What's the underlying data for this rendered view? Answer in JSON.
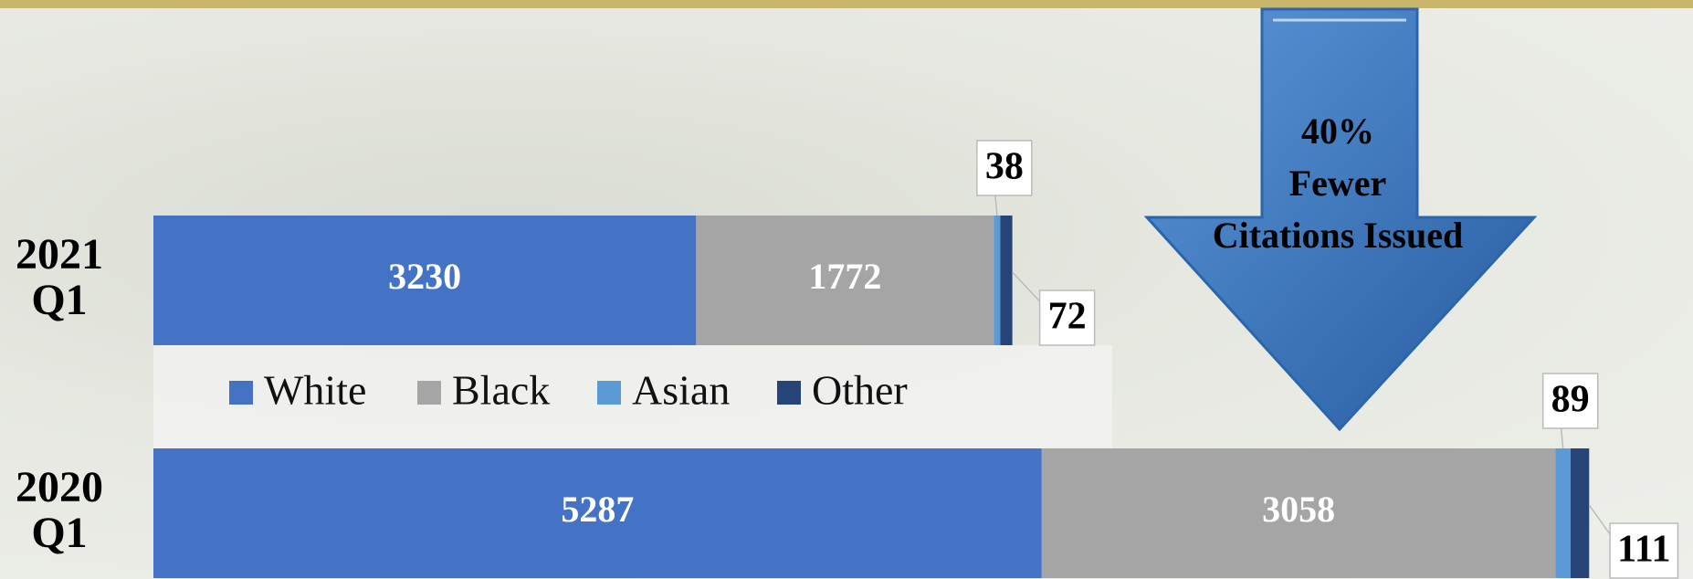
{
  "chart_data": {
    "type": "stacked-bar-horizontal",
    "categories": [
      "2021 Q1",
      "2020 Q1"
    ],
    "series": [
      {
        "name": "White",
        "color": "#4472c4",
        "values": [
          3230,
          5287
        ]
      },
      {
        "name": "Black",
        "color": "#a5a5a5",
        "values": [
          1772,
          3058
        ]
      },
      {
        "name": "Asian",
        "color": "#5b9bd5",
        "values": [
          38,
          89
        ]
      },
      {
        "name": "Other",
        "color": "#264478",
        "values": [
          72,
          111
        ]
      }
    ],
    "annotation": [
      "40%",
      "Fewer",
      "Citations Issued"
    ],
    "legend": "inside-middle"
  }
}
